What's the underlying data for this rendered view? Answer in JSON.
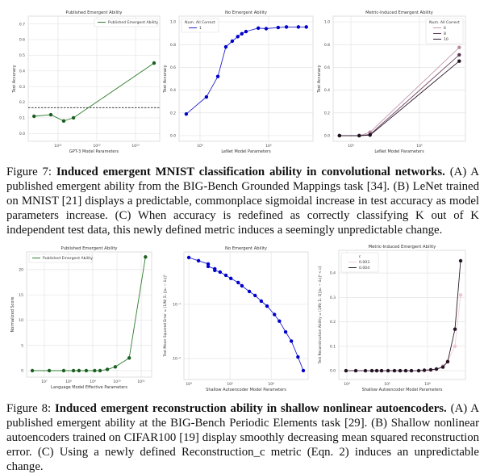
{
  "figure7": {
    "caption": {
      "label": "Figure 7: ",
      "bold": "Induced emergent MNIST classification ability in convolutional networks.",
      "text": " (A) A published emergent ability from the BIG-Bench Grounded Mappings task [34]. (B) LeNet trained on MNIST [21] displays a predictable, commonplace sigmoidal increase in test accuracy as model parameters increase. (C) When accuracy is redefined as correctly classifying K out of K independent test data, this newly defined metric induces a seemingly unpredictable change."
    }
  },
  "figure8": {
    "caption": {
      "label": "Figure 8: ",
      "bold": "Induced emergent reconstruction ability in shallow nonlinear autoencoders.",
      "text": " (A) A published emergent ability at the BIG-Bench Periodic Elements task [29]. (B) Shallow nonlinear autoencoders trained on CIFAR100 [19] display smoothly decreasing mean squared reconstruction error. (C) Using a newly defined Reconstruction_c metric (Eqn. 2) induces an unpredictable change."
    }
  },
  "chart_data": [
    {
      "type": "line",
      "title": "Published Emergent Ability",
      "xlabel": "GPT-3 Model Parameters",
      "ylabel": "Test Accuracy",
      "xscale": "log",
      "xlim": [
        1.7e+20,
        4.2e+23
      ],
      "ylim": [
        -0.05,
        0.75
      ],
      "grid": true,
      "xticks": [
        {
          "v": 1e+21,
          "label": "10²¹"
        },
        {
          "v": 1e+22,
          "label": "10²²"
        },
        {
          "v": 1e+23,
          "label": "10²³"
        }
      ],
      "yticks": [
        {
          "v": 0,
          "label": "0.0"
        },
        {
          "v": 0.1,
          "label": "0.1"
        },
        {
          "v": 0.2,
          "label": "0.2"
        },
        {
          "v": 0.3,
          "label": "0.3"
        },
        {
          "v": 0.4,
          "label": "0.4"
        },
        {
          "v": 0.5,
          "label": "0.5"
        },
        {
          "v": 0.6,
          "label": "0.6"
        },
        {
          "v": 0.7,
          "label": "0.7"
        }
      ],
      "hline": {
        "y": 0.165,
        "style": "dashed",
        "color": "#222222"
      },
      "legend": {
        "placement": "top-right",
        "title": ""
      },
      "series": [
        {
          "name": "Published Emergent Ability",
          "color": "#2e7d2e",
          "marker": "#1b5e20",
          "x": [
            2.4e+20,
            6.5e+20,
            1.4e+21,
            2.5e+21,
            3e+23
          ],
          "y": [
            0.11,
            0.12,
            0.08,
            0.1,
            0.45
          ]
        }
      ]
    },
    {
      "type": "line",
      "title": "No Emergent Ability",
      "xlabel": "LeNet Model Parameters",
      "ylabel": "Test Accuracy",
      "xscale": "log",
      "xlim": [
        4950,
        444000
      ],
      "ylim": [
        -0.05,
        1.05
      ],
      "grid": true,
      "xticks": [
        {
          "v": 10000.0,
          "label": "10⁴"
        },
        {
          "v": 100000.0,
          "label": "10⁵"
        }
      ],
      "yticks": [
        {
          "v": 0,
          "label": "0.0"
        },
        {
          "v": 0.2,
          "label": "0.2"
        },
        {
          "v": 0.4,
          "label": "0.4"
        },
        {
          "v": 0.6,
          "label": "0.6"
        },
        {
          "v": 0.8,
          "label": "0.8"
        },
        {
          "v": 1.0,
          "label": "1.0"
        }
      ],
      "legend": {
        "placement": "top-left",
        "title": "Num. All Correct"
      },
      "series": [
        {
          "name": "1",
          "color": "#2222cc",
          "marker": "#0000cc",
          "x": [
            6300,
            12400,
            18200,
            23800,
            29500,
            35500,
            40700,
            46800,
            70800,
            92300,
            138000,
            182000,
            272000,
            355000
          ],
          "y": [
            0.19,
            0.34,
            0.52,
            0.78,
            0.83,
            0.87,
            0.895,
            0.915,
            0.945,
            0.94,
            0.95,
            0.955,
            0.955,
            0.955
          ]
        }
      ]
    },
    {
      "type": "line",
      "title": "Metric-Induced Emergent Ability",
      "xlabel": "LeNet Model Parameters",
      "ylabel": "Test Accuracy",
      "xscale": "log",
      "xlim": [
        5500,
        468000
      ],
      "ylim": [
        -0.05,
        1.05
      ],
      "grid": true,
      "xticks": [
        {
          "v": 10000.0,
          "label": "10⁴"
        },
        {
          "v": 100000.0,
          "label": "10⁵"
        }
      ],
      "yticks": [
        {
          "v": 0,
          "label": "0.0"
        },
        {
          "v": 0.2,
          "label": "0.2"
        },
        {
          "v": 0.4,
          "label": "0.4"
        },
        {
          "v": 0.6,
          "label": "0.6"
        },
        {
          "v": 0.8,
          "label": "0.8"
        },
        {
          "v": 1.0,
          "label": "1.0"
        }
      ],
      "legend": {
        "placement": "top-right",
        "title": "Num. All Correct"
      },
      "series": [
        {
          "name": "6",
          "color": "#c59aae",
          "marker": "#b58aa0",
          "x": [
            6800,
            13200,
            19000,
            380000
          ],
          "y": [
            0,
            0,
            0.03,
            0.775
          ]
        },
        {
          "name": "8",
          "color": "#6e4262",
          "marker": "#5e3655",
          "x": [
            6800,
            13200,
            19000,
            380000
          ],
          "y": [
            0,
            0,
            0.01,
            0.71
          ]
        },
        {
          "name": "10",
          "color": "#2a1828",
          "marker": "#1e101e",
          "x": [
            6800,
            13200,
            19000,
            380000
          ],
          "y": [
            0,
            0,
            0.005,
            0.655
          ]
        }
      ]
    },
    {
      "type": "line",
      "title": "Published Emergent Ability",
      "xlabel": "Language Model Effective Parameters",
      "ylabel": "Normalized Score",
      "xscale": "log",
      "xlim": [
        1860000.0,
        270000000000.0
      ],
      "ylim": [
        -1.28,
        23.5
      ],
      "grid": true,
      "xticks": [
        {
          "v": 10000000.0,
          "label": "10⁷"
        },
        {
          "v": 100000000.0,
          "label": "10⁸"
        },
        {
          "v": 1000000000.0,
          "label": "10⁹"
        },
        {
          "v": 10000000000.0,
          "label": "10¹⁰"
        },
        {
          "v": 100000000000.0,
          "label": "10¹¹"
        }
      ],
      "yticks": [
        {
          "v": 0,
          "label": "0"
        },
        {
          "v": 5,
          "label": "5"
        },
        {
          "v": 10,
          "label": "10"
        },
        {
          "v": 15,
          "label": "15"
        },
        {
          "v": 20,
          "label": "20"
        }
      ],
      "legend": {
        "placement": "top-left",
        "title": ""
      },
      "series": [
        {
          "name": "Published Emergent Ability",
          "color": "#2e7d2e",
          "marker": "#1b5e20",
          "x": [
            3200000.0,
            16000000.0,
            63000000.0,
            160000000.0,
            270000000.0,
            540000000.0,
            1200000000.0,
            2000000000.0,
            4000000000.0,
            8500000000.0,
            32000000000.0,
            150000000000.0
          ],
          "y": [
            0,
            0,
            0,
            0,
            0,
            0,
            0,
            0,
            0.25,
            0.75,
            2.5,
            22.5
          ]
        }
      ]
    },
    {
      "type": "line",
      "title": "No Emergent Ability",
      "xlabel": "Shallow Autoencoder Model Parameters",
      "ylabel": "Test Mean Squared Error  =  (1/N) Σₙ ||xₙ − x̂ₙ||²",
      "xscale": "log",
      "yscale": "log",
      "xlim": [
        7600,
        7900000.0
      ],
      "ylim": [
        0.0041,
        0.93
      ],
      "grid": true,
      "xticks": [
        {
          "v": 10000.0,
          "label": "10⁴"
        },
        {
          "v": 100000.0,
          "label": "10⁵"
        },
        {
          "v": 1000000.0,
          "label": "10⁶"
        }
      ],
      "yticks": [
        {
          "v": 0.1,
          "label": "10⁻¹"
        },
        {
          "v": 0.01,
          "label": "10⁻²"
        }
      ],
      "series": [
        {
          "name": "",
          "color": "#2222cc",
          "marker": "#0000cc",
          "x": [
            10000,
            17200,
            29500,
            29500,
            42700,
            42700,
            57500,
            79400,
            105000,
            158000,
            195000,
            295000,
            407000,
            575000,
            794000,
            1200000,
            1580000,
            2240000,
            3090000,
            4470000,
            6030000
          ],
          "y": [
            0.734,
            0.64,
            0.557,
            0.502,
            0.454,
            0.424,
            0.395,
            0.344,
            0.301,
            0.253,
            0.22,
            0.173,
            0.146,
            0.115,
            0.093,
            0.065,
            0.049,
            0.031,
            0.021,
            0.0107,
            0.006
          ]
        }
      ]
    },
    {
      "type": "line",
      "title": "Metric-Induced Emergent Ability",
      "xlabel": "Shallow Autoencoder Model Parameters",
      "ylabel": "Test Reconstruction Ability  =  (1/N) Σₙ 𝟙[||xₙ − x̂ₙ||² < c]",
      "xscale": "log",
      "xlim": [
        6300,
        8700000.0
      ],
      "ylim": [
        -0.036,
        0.493
      ],
      "grid": true,
      "xticks": [
        {
          "v": 10000.0,
          "label": "10⁴"
        },
        {
          "v": 100000.0,
          "label": "10⁵"
        },
        {
          "v": 1000000.0,
          "label": "10⁶"
        }
      ],
      "yticks": [
        {
          "v": 0,
          "label": "0.0"
        },
        {
          "v": 0.1,
          "label": "0.1"
        },
        {
          "v": 0.2,
          "label": "0.2"
        },
        {
          "v": 0.3,
          "label": "0.3"
        },
        {
          "v": 0.4,
          "label": "0.4"
        }
      ],
      "legend": {
        "placement": "top-left",
        "title": "c"
      },
      "series": [
        {
          "name": "0.003",
          "color": "#f0cfd8",
          "marker": "#eec5cf",
          "x": [
            9500,
            16600,
            28800,
            41700,
            55000,
            72400,
            105000,
            151000,
            209000,
            288000,
            398000,
            603000,
            832000,
            1200000,
            1660000,
            2400000,
            3160000,
            4790000,
            6610000
          ],
          "y": [
            0,
            0,
            0,
            0,
            0,
            0,
            0,
            0,
            0,
            0,
            0,
            0,
            0,
            0.002,
            0.005,
            0.02,
            0.04,
            0.1,
            0.31
          ]
        },
        {
          "name": "0.004",
          "color": "#2b1a2b",
          "marker": "#241424",
          "x": [
            9500,
            16600,
            28800,
            41700,
            55000,
            72400,
            105000,
            151000,
            209000,
            288000,
            398000,
            603000,
            832000,
            1200000,
            1660000,
            2400000,
            3160000,
            4790000,
            6610000
          ],
          "y": [
            0,
            0,
            0,
            0,
            0,
            0,
            0,
            0,
            0,
            0,
            0,
            0,
            0.002,
            0.004,
            0.007,
            0.015,
            0.037,
            0.17,
            0.45
          ]
        }
      ]
    }
  ]
}
